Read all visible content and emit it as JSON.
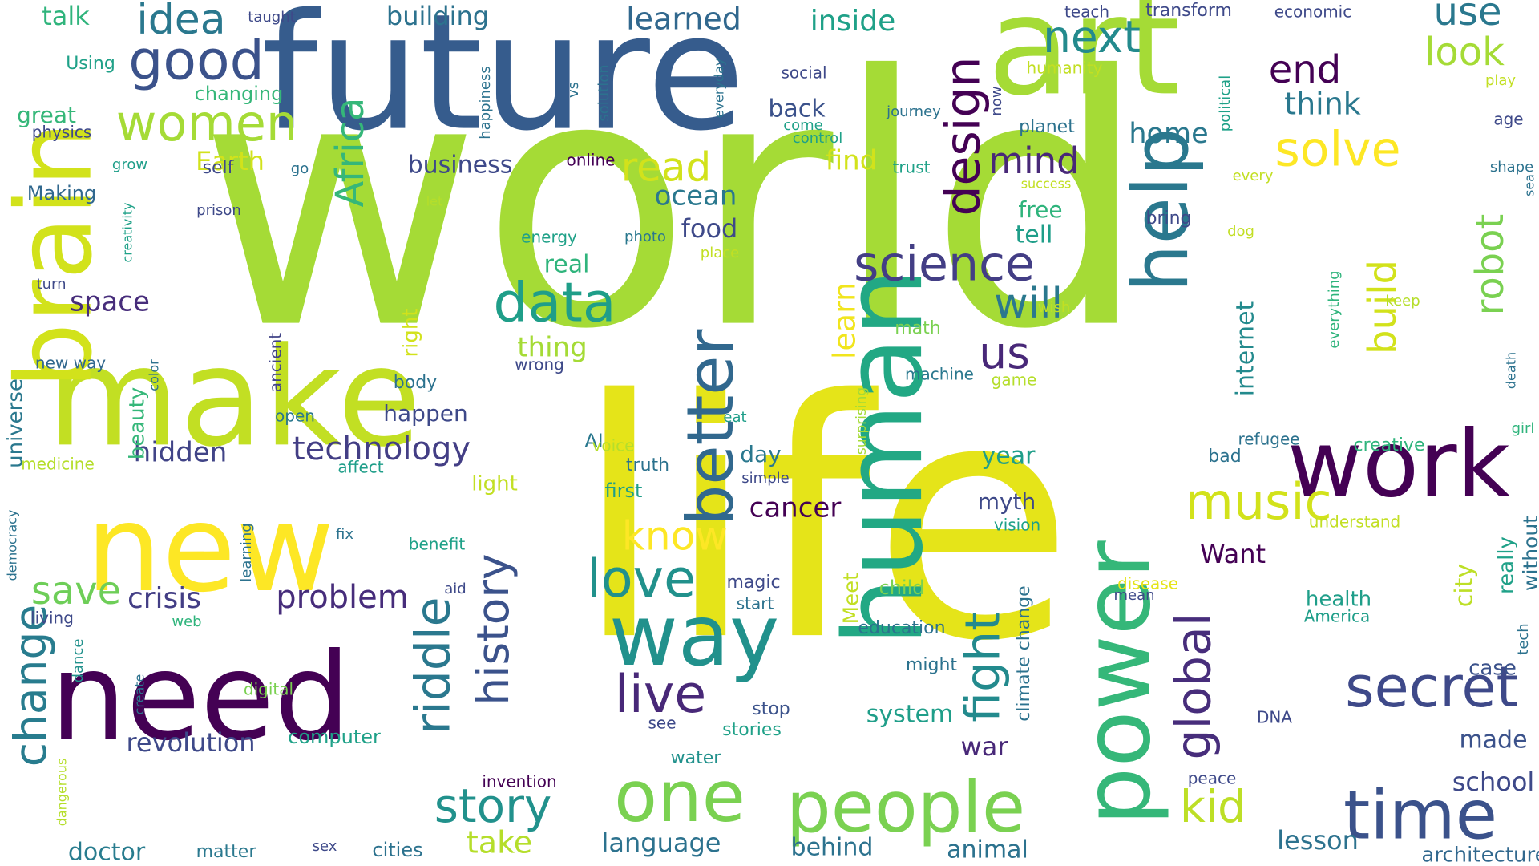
{
  "words": [
    {
      "text": "world",
      "color": "#a5db36"
    },
    {
      "text": "life",
      "color": "#e5e419"
    },
    {
      "text": "future",
      "color": "#365c8d"
    },
    {
      "text": "art",
      "color": "#a5db36"
    },
    {
      "text": "make",
      "color": "#c2df23"
    },
    {
      "text": "new",
      "color": "#fde725"
    },
    {
      "text": "brain",
      "color": "#d2e21b"
    },
    {
      "text": "need",
      "color": "#440154"
    },
    {
      "text": "human",
      "color": "#22a884"
    },
    {
      "text": "help",
      "color": "#2a788e"
    },
    {
      "text": "power",
      "color": "#35b779"
    },
    {
      "text": "work",
      "color": "#440154"
    },
    {
      "text": "way",
      "color": "#21918c"
    },
    {
      "text": "one",
      "color": "#7ad151"
    },
    {
      "text": "people",
      "color": "#7ad151"
    },
    {
      "text": "better",
      "color": "#31688e"
    },
    {
      "text": "time",
      "color": "#3b528b"
    },
    {
      "text": "secret",
      "color": "#3e4989"
    },
    {
      "text": "good",
      "color": "#3b528b"
    },
    {
      "text": "women",
      "color": "#a5db36"
    },
    {
      "text": "idea",
      "color": "#2a788e"
    },
    {
      "text": "science",
      "color": "#433e85"
    },
    {
      "text": "data",
      "color": "#1f9e89"
    },
    {
      "text": "design",
      "color": "#440154"
    },
    {
      "text": "next",
      "color": "#238a8d"
    },
    {
      "text": "use",
      "color": "#2a788e"
    },
    {
      "text": "end",
      "color": "#440154"
    },
    {
      "text": "solve",
      "color": "#fde725"
    },
    {
      "text": "look",
      "color": "#a5db36"
    },
    {
      "text": "think",
      "color": "#2a788e"
    },
    {
      "text": "home",
      "color": "#2a788e"
    },
    {
      "text": "Africa",
      "color": "#35b779"
    },
    {
      "text": "read",
      "color": "#d2e21b"
    },
    {
      "text": "mind",
      "color": "#482878"
    },
    {
      "text": "will",
      "color": "#2a788e"
    },
    {
      "text": "us",
      "color": "#482878"
    },
    {
      "text": "robot",
      "color": "#7ad151"
    },
    {
      "text": "build",
      "color": "#d2e21b"
    },
    {
      "text": "music",
      "color": "#d2e21b"
    },
    {
      "text": "love",
      "color": "#21918c"
    },
    {
      "text": "know",
      "color": "#fde725"
    },
    {
      "text": "live",
      "color": "#482878"
    },
    {
      "text": "story",
      "color": "#21918c"
    },
    {
      "text": "history",
      "color": "#3b528b"
    },
    {
      "text": "riddle",
      "color": "#2a788e"
    },
    {
      "text": "fight",
      "color": "#238a8d"
    },
    {
      "text": "global",
      "color": "#472d7b"
    },
    {
      "text": "kid",
      "color": "#bddf26"
    },
    {
      "text": "change",
      "color": "#287c8e"
    },
    {
      "text": "save",
      "color": "#6ece58"
    },
    {
      "text": "crisis",
      "color": "#433e85"
    },
    {
      "text": "problem",
      "color": "#472d7b"
    },
    {
      "text": "technology",
      "color": "#433e85"
    },
    {
      "text": "hidden",
      "color": "#414487"
    },
    {
      "text": "cancer",
      "color": "#440154"
    },
    {
      "text": "learn",
      "color": "#f1e51d"
    },
    {
      "text": "revolution",
      "color": "#3e4989"
    },
    {
      "text": "take",
      "color": "#b5de2b"
    },
    {
      "text": "doctor",
      "color": "#287c8e"
    },
    {
      "text": "language",
      "color": "#2c728e"
    },
    {
      "text": "behind",
      "color": "#2c728e"
    },
    {
      "text": "animal",
      "color": "#2c728e"
    },
    {
      "text": "lesson",
      "color": "#2c728e"
    },
    {
      "text": "school",
      "color": "#3e4989"
    },
    {
      "text": "made",
      "color": "#3b528b"
    },
    {
      "text": "architecture",
      "color": "#31688e"
    },
    {
      "text": "building",
      "color": "#2c728e"
    },
    {
      "text": "learned",
      "color": "#31688e"
    },
    {
      "text": "inside",
      "color": "#1fa188"
    },
    {
      "text": "business",
      "color": "#3e4989"
    },
    {
      "text": "Earth",
      "color": "#d2e21b"
    },
    {
      "text": "talk",
      "color": "#2fb47c"
    },
    {
      "text": "space",
      "color": "#472d7b"
    },
    {
      "text": "universe",
      "color": "#2a788e"
    },
    {
      "text": "beauty",
      "color": "#35b779"
    },
    {
      "text": "internet",
      "color": "#238a8d"
    },
    {
      "text": "city",
      "color": "#bddf26"
    },
    {
      "text": "really",
      "color": "#1fa188"
    },
    {
      "text": "without",
      "color": "#2c728e"
    },
    {
      "text": "case",
      "color": "#3b528b"
    },
    {
      "text": "Want",
      "color": "#440154"
    },
    {
      "text": "myth",
      "color": "#3e4989"
    },
    {
      "text": "year",
      "color": "#1f9e89"
    },
    {
      "text": "war",
      "color": "#482878"
    },
    {
      "text": "system",
      "color": "#1f9e89"
    },
    {
      "text": "ocean",
      "color": "#2a788e"
    },
    {
      "text": "food",
      "color": "#3e4989"
    },
    {
      "text": "find",
      "color": "#d2e21b"
    },
    {
      "text": "back",
      "color": "#3b528b"
    },
    {
      "text": "free",
      "color": "#2fb47c"
    },
    {
      "text": "tell",
      "color": "#1f9e89"
    },
    {
      "text": "real",
      "color": "#2fb47c"
    },
    {
      "text": "thing",
      "color": "#a5db36"
    },
    {
      "text": "right",
      "color": "#d2e21b"
    },
    {
      "text": "happen",
      "color": "#3e4989"
    },
    {
      "text": "day",
      "color": "#2a788e"
    },
    {
      "text": "AI",
      "color": "#2a788e"
    },
    {
      "text": "truth",
      "color": "#2c728e"
    },
    {
      "text": "first",
      "color": "#1f9e89"
    },
    {
      "text": "great",
      "color": "#35b779"
    },
    {
      "text": "Making",
      "color": "#31688e"
    },
    {
      "text": "Using",
      "color": "#1fa188"
    },
    {
      "text": "physics",
      "color": "#3e4989"
    },
    {
      "text": "changing",
      "color": "#35b779"
    },
    {
      "text": "grow",
      "color": "#1f9e89"
    },
    {
      "text": "go",
      "color": "#2c728e"
    },
    {
      "text": "self",
      "color": "#3e4989"
    },
    {
      "text": "prison",
      "color": "#3e4989"
    },
    {
      "text": "creativity",
      "color": "#1fa188"
    },
    {
      "text": "turn",
      "color": "#3e4989"
    },
    {
      "text": "new way",
      "color": "#31688e"
    },
    {
      "text": "color",
      "color": "#2c728e"
    },
    {
      "text": "ancient",
      "color": "#414487"
    },
    {
      "text": "open",
      "color": "#2a788e"
    },
    {
      "text": "body",
      "color": "#2c728e"
    },
    {
      "text": "wrong",
      "color": "#3e4989"
    },
    {
      "text": "machine",
      "color": "#2a788e"
    },
    {
      "text": "math",
      "color": "#7ad151"
    },
    {
      "text": "wish",
      "color": "#c2df23"
    },
    {
      "text": "game",
      "color": "#b5de2b"
    },
    {
      "text": "surprising",
      "color": "#a5db36"
    },
    {
      "text": "medicine",
      "color": "#b5de2b"
    },
    {
      "text": "affect",
      "color": "#1f9e89"
    },
    {
      "text": "democracy",
      "color": "#2c728e"
    },
    {
      "text": "learning",
      "color": "#2c728e"
    },
    {
      "text": "fix",
      "color": "#2c728e"
    },
    {
      "text": "benefit",
      "color": "#1fa188"
    },
    {
      "text": "living",
      "color": "#3e4989"
    },
    {
      "text": "web",
      "color": "#2fb47c"
    },
    {
      "text": "dance",
      "color": "#21918c"
    },
    {
      "text": "create",
      "color": "#2c728e"
    },
    {
      "text": "digital",
      "color": "#7ad151"
    },
    {
      "text": "dangerous",
      "color": "#b5de2b"
    },
    {
      "text": "computer",
      "color": "#1fa188"
    },
    {
      "text": "matter",
      "color": "#2a788e"
    },
    {
      "text": "sex",
      "color": "#3e4989"
    },
    {
      "text": "cities",
      "color": "#2c728e"
    },
    {
      "text": "invention",
      "color": "#440154"
    },
    {
      "text": "water",
      "color": "#21918c"
    },
    {
      "text": "see",
      "color": "#3e4989"
    },
    {
      "text": "stories",
      "color": "#1fa188"
    },
    {
      "text": "stop",
      "color": "#3b528b"
    },
    {
      "text": "magic",
      "color": "#3e4989"
    },
    {
      "text": "start",
      "color": "#2c728e"
    },
    {
      "text": "aid",
      "color": "#3e4989"
    },
    {
      "text": "light",
      "color": "#c2df23"
    },
    {
      "text": "voice",
      "color": "#b5de2b"
    },
    {
      "text": "eat",
      "color": "#1f9e89"
    },
    {
      "text": "simple",
      "color": "#3e4989"
    },
    {
      "text": "might",
      "color": "#2c728e"
    },
    {
      "text": "education",
      "color": "#2c728e"
    },
    {
      "text": "child",
      "color": "#7ad151"
    },
    {
      "text": "Meet",
      "color": "#c2df23"
    },
    {
      "text": "vision",
      "color": "#1fa188"
    },
    {
      "text": "climate change",
      "color": "#2c728e"
    },
    {
      "text": "disease",
      "color": "#e5e419"
    },
    {
      "text": "mean",
      "color": "#3e4989"
    },
    {
      "text": "health",
      "color": "#1f9e89"
    },
    {
      "text": "America",
      "color": "#1f9e89"
    },
    {
      "text": "DNA",
      "color": "#3e4989"
    },
    {
      "text": "peace",
      "color": "#3e4989"
    },
    {
      "text": "understand",
      "color": "#c2df23"
    },
    {
      "text": "creative",
      "color": "#2fb47c"
    },
    {
      "text": "refugee",
      "color": "#2c728e"
    },
    {
      "text": "bad",
      "color": "#2c728e"
    },
    {
      "text": "tech",
      "color": "#2c728e"
    },
    {
      "text": "girl",
      "color": "#2fb47c"
    },
    {
      "text": "death",
      "color": "#2c728e"
    },
    {
      "text": "everything",
      "color": "#2fb47c"
    },
    {
      "text": "keep",
      "color": "#b5de2b"
    },
    {
      "text": "dog",
      "color": "#c2df23"
    },
    {
      "text": "place",
      "color": "#c2df23"
    },
    {
      "text": "photo",
      "color": "#2a788e"
    },
    {
      "text": "energy",
      "color": "#1fa188"
    },
    {
      "text": "let",
      "color": "#b5de2b"
    },
    {
      "text": "bring",
      "color": "#3e4989"
    },
    {
      "text": "success",
      "color": "#c2df23"
    },
    {
      "text": "every",
      "color": "#c2df23"
    },
    {
      "text": "shape",
      "color": "#2c728e"
    },
    {
      "text": "sea",
      "color": "#2c728e"
    },
    {
      "text": "age",
      "color": "#3e4989"
    },
    {
      "text": "play",
      "color": "#c2df23"
    },
    {
      "text": "economic",
      "color": "#3e4989"
    },
    {
      "text": "political",
      "color": "#1fa188"
    },
    {
      "text": "planet",
      "color": "#2c728e"
    },
    {
      "text": "trust",
      "color": "#1fa188"
    },
    {
      "text": "humanity",
      "color": "#c2df23"
    },
    {
      "text": "teach",
      "color": "#3e4989"
    },
    {
      "text": "transform",
      "color": "#3e4989"
    },
    {
      "text": "now",
      "color": "#3e4989"
    },
    {
      "text": "journey",
      "color": "#2c728e"
    },
    {
      "text": "social",
      "color": "#3e4989"
    },
    {
      "text": "come",
      "color": "#1fa188"
    },
    {
      "text": "control",
      "color": "#1fa188"
    },
    {
      "text": "online",
      "color": "#440154"
    },
    {
      "text": "everyday",
      "color": "#2c728e"
    },
    {
      "text": "solution",
      "color": "#2c728e"
    },
    {
      "text": "vs",
      "color": "#2c728e"
    },
    {
      "text": "happiness",
      "color": "#2c728e"
    },
    {
      "text": "taught",
      "color": "#3e4989"
    }
  ]
}
